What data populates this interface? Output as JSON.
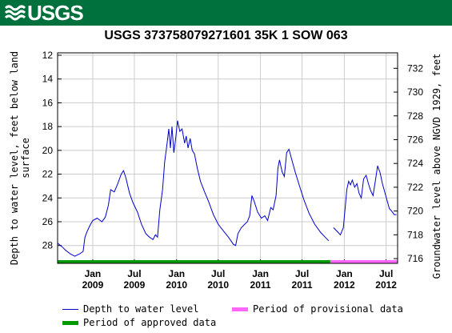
{
  "header": {
    "logo_text": "USGS",
    "brand_color": "#00703c"
  },
  "chart_data": {
    "type": "line",
    "title": "USGS 373758079271601 35K  1 SOW 063",
    "ylabel_left": "Depth to water level, feet below land surface",
    "ylabel_right": "Groundwater level above NGVD 1929, feet",
    "ylim_left": [
      29.5,
      11.8
    ],
    "ylim_right": [
      715.6,
      733.3
    ],
    "xlim": [
      "2008-08-01",
      "2012-08-20"
    ],
    "yticks_left": [
      12,
      14,
      16,
      18,
      20,
      22,
      24,
      26,
      28
    ],
    "yticks_right": [
      716,
      718,
      720,
      722,
      724,
      726,
      728,
      730,
      732
    ],
    "xticks": [
      {
        "date": "2009-01-01",
        "line1": "Jan",
        "line2": "2009"
      },
      {
        "date": "2009-07-01",
        "line1": "Jul",
        "line2": "2009"
      },
      {
        "date": "2010-01-01",
        "line1": "Jan",
        "line2": "2010"
      },
      {
        "date": "2010-07-01",
        "line1": "Jul",
        "line2": "2010"
      },
      {
        "date": "2011-01-01",
        "line1": "Jan",
        "line2": "2011"
      },
      {
        "date": "2011-07-01",
        "line1": "Jul",
        "line2": "2011"
      },
      {
        "date": "2012-01-01",
        "line1": "Jan",
        "line2": "2012"
      },
      {
        "date": "2012-07-01",
        "line1": "Jul",
        "line2": "2012"
      }
    ],
    "grid": true,
    "series": [
      {
        "name": "Depth to water level",
        "color": "#0000cc",
        "segments": [
          [
            [
              "2008-08-01",
              27.8
            ],
            [
              "2008-08-20",
              28.1
            ],
            [
              "2008-09-05",
              28.4
            ],
            [
              "2008-09-25",
              28.7
            ],
            [
              "2008-10-15",
              28.9
            ],
            [
              "2008-11-05",
              28.7
            ],
            [
              "2008-11-20",
              28.5
            ],
            [
              "2008-11-28",
              27.3
            ],
            [
              "2008-12-08",
              26.8
            ],
            [
              "2008-12-20",
              26.3
            ],
            [
              "2009-01-01",
              25.9
            ],
            [
              "2009-01-20",
              25.7
            ],
            [
              "2009-02-10",
              26.0
            ],
            [
              "2009-02-25",
              25.6
            ],
            [
              "2009-03-10",
              24.6
            ],
            [
              "2009-03-20",
              23.3
            ],
            [
              "2009-04-05",
              23.5
            ],
            [
              "2009-04-20",
              22.8
            ],
            [
              "2009-05-05",
              22.0
            ],
            [
              "2009-05-15",
              21.7
            ],
            [
              "2009-05-25",
              22.3
            ],
            [
              "2009-06-10",
              23.6
            ],
            [
              "2009-06-25",
              24.4
            ],
            [
              "2009-07-15",
              25.2
            ],
            [
              "2009-08-01",
              26.2
            ],
            [
              "2009-08-20",
              27.0
            ],
            [
              "2009-09-05",
              27.3
            ],
            [
              "2009-09-20",
              27.5
            ],
            [
              "2009-10-01",
              27.1
            ],
            [
              "2009-10-10",
              27.3
            ],
            [
              "2009-10-20",
              25.0
            ],
            [
              "2009-11-01",
              23.3
            ],
            [
              "2009-11-10",
              21.0
            ],
            [
              "2009-11-20",
              19.5
            ],
            [
              "2009-11-28",
              18.2
            ],
            [
              "2009-12-05",
              19.8
            ],
            [
              "2009-12-12",
              18.0
            ],
            [
              "2009-12-20",
              20.2
            ],
            [
              "2009-12-28",
              19.0
            ],
            [
              "2010-01-05",
              17.5
            ],
            [
              "2010-01-15",
              18.4
            ],
            [
              "2010-01-25",
              18.2
            ],
            [
              "2010-02-05",
              19.4
            ],
            [
              "2010-02-12",
              18.8
            ],
            [
              "2010-02-20",
              19.8
            ],
            [
              "2010-03-01",
              19.0
            ],
            [
              "2010-03-10",
              20.0
            ],
            [
              "2010-03-20",
              20.3
            ],
            [
              "2010-04-01",
              21.5
            ],
            [
              "2010-04-15",
              22.6
            ],
            [
              "2010-05-01",
              23.4
            ],
            [
              "2010-05-20",
              24.3
            ],
            [
              "2010-06-10",
              25.4
            ],
            [
              "2010-07-01",
              26.2
            ],
            [
              "2010-07-25",
              26.8
            ],
            [
              "2010-08-15",
              27.3
            ],
            [
              "2010-09-05",
              27.9
            ],
            [
              "2010-09-15",
              28.0
            ],
            [
              "2010-09-25",
              27.0
            ],
            [
              "2010-10-10",
              26.5
            ],
            [
              "2010-10-25",
              26.2
            ],
            [
              "2010-11-05",
              26.0
            ],
            [
              "2010-11-15",
              25.5
            ],
            [
              "2010-11-25",
              23.8
            ],
            [
              "2010-12-05",
              24.3
            ],
            [
              "2010-12-20",
              25.2
            ],
            [
              "2011-01-05",
              25.7
            ],
            [
              "2011-01-20",
              25.5
            ],
            [
              "2011-02-01",
              25.9
            ],
            [
              "2011-02-15",
              24.8
            ],
            [
              "2011-02-25",
              25.0
            ],
            [
              "2011-03-10",
              23.8
            ],
            [
              "2011-03-18",
              21.5
            ],
            [
              "2011-03-25",
              20.8
            ],
            [
              "2011-04-05",
              21.8
            ],
            [
              "2011-04-15",
              22.2
            ],
            [
              "2011-04-25",
              20.2
            ],
            [
              "2011-05-05",
              19.9
            ],
            [
              "2011-05-15",
              20.6
            ],
            [
              "2011-06-01",
              21.8
            ],
            [
              "2011-06-20",
              23.0
            ],
            [
              "2011-07-10",
              24.2
            ],
            [
              "2011-08-01",
              25.3
            ],
            [
              "2011-08-25",
              26.2
            ],
            [
              "2011-09-20",
              26.9
            ],
            [
              "2011-10-10",
              27.3
            ],
            [
              "2011-10-25",
              27.6
            ]
          ],
          [
            [
              "2011-11-15",
              26.5
            ],
            [
              "2011-11-30",
              26.8
            ],
            [
              "2011-12-15",
              27.1
            ],
            [
              "2011-12-28",
              26.5
            ],
            [
              "2012-01-05",
              24.8
            ],
            [
              "2012-01-12",
              23.3
            ],
            [
              "2012-01-20",
              22.6
            ],
            [
              "2012-01-28",
              22.9
            ],
            [
              "2012-02-05",
              22.5
            ],
            [
              "2012-02-15",
              23.1
            ],
            [
              "2012-02-25",
              22.8
            ],
            [
              "2012-03-05",
              23.6
            ],
            [
              "2012-03-15",
              24.0
            ],
            [
              "2012-03-25",
              22.4
            ],
            [
              "2012-04-05",
              22.1
            ],
            [
              "2012-04-15",
              22.8
            ],
            [
              "2012-04-25",
              23.4
            ],
            [
              "2012-05-05",
              23.8
            ],
            [
              "2012-05-15",
              22.6
            ],
            [
              "2012-05-25",
              21.3
            ],
            [
              "2012-06-05",
              21.9
            ],
            [
              "2012-06-15",
              22.8
            ],
            [
              "2012-06-25",
              23.5
            ],
            [
              "2012-07-05",
              24.2
            ],
            [
              "2012-07-15",
              24.9
            ],
            [
              "2012-07-25",
              25.1
            ],
            [
              "2012-08-05",
              25.4
            ],
            [
              "2012-08-15",
              25.4
            ]
          ]
        ]
      }
    ],
    "periods": [
      {
        "name": "Period of approved data",
        "color": "#009900",
        "start": "2008-08-01",
        "end": "2011-11-01"
      },
      {
        "name": "Period of provisional data",
        "color": "#ff66ff",
        "start": "2011-11-01",
        "end": "2012-08-20"
      }
    ],
    "legend": {
      "line_label": "Depth to water level",
      "provisional_label": "Period of provisional data",
      "approved_label": "Period of approved data",
      "placement": "bottom"
    }
  }
}
